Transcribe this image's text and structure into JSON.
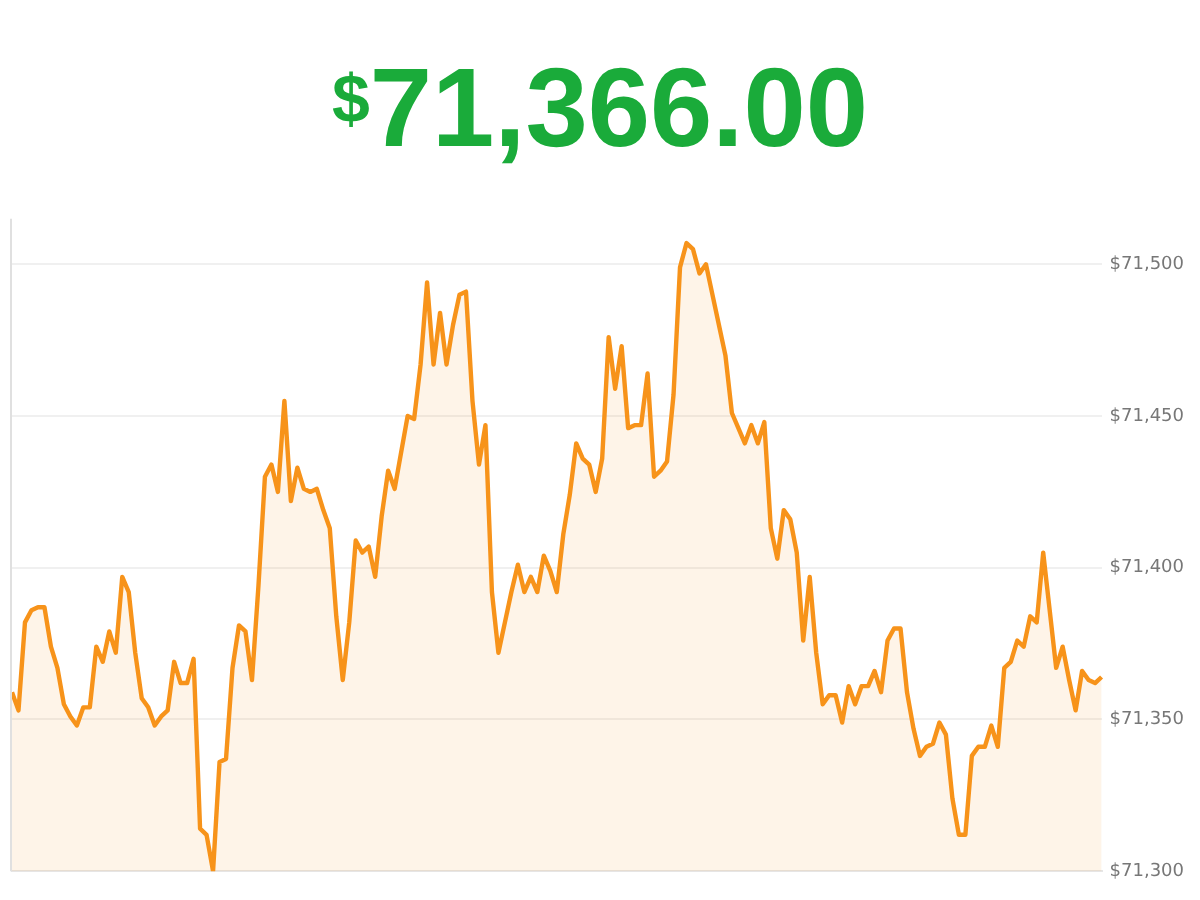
{
  "chart_data": {
    "type": "area",
    "title": "$71,366.00",
    "categories": [
      null,
      null,
      null,
      null,
      null,
      null,
      null,
      null,
      null,
      null,
      null,
      null,
      null,
      null,
      null,
      null,
      null,
      null,
      null,
      null,
      null,
      null,
      null,
      null,
      null,
      null,
      null,
      null,
      null,
      null,
      null,
      null,
      null,
      null,
      null,
      null,
      null,
      null,
      null,
      null,
      null,
      null,
      null,
      null,
      null,
      null,
      null,
      null,
      null,
      null,
      null,
      null,
      null,
      null,
      null,
      null,
      null,
      null,
      null,
      null,
      null,
      null,
      null,
      null,
      null,
      null,
      null,
      null,
      null,
      null,
      null,
      null,
      null,
      null,
      null,
      null,
      null,
      null,
      null,
      null,
      null,
      null,
      null,
      null,
      null,
      null,
      null,
      null,
      null,
      null,
      null,
      null,
      null,
      null,
      null,
      null,
      null,
      null,
      null,
      null,
      null,
      null,
      null,
      null,
      null,
      null,
      null,
      null,
      null,
      null,
      null,
      null,
      null,
      null,
      null,
      null,
      null,
      null,
      null,
      null,
      null,
      null,
      null,
      null,
      null,
      null,
      null,
      null,
      null,
      null,
      null,
      null,
      null,
      null,
      null,
      null,
      null,
      null,
      null,
      null,
      null,
      null,
      null,
      null,
      null,
      null,
      null,
      null,
      null,
      null,
      null,
      null,
      null,
      null,
      null,
      null,
      null,
      null,
      null,
      null,
      null,
      null,
      null,
      null,
      null,
      null,
      null,
      null,
      null
    ],
    "series": [
      {
        "color": "#f7931a",
        "values": [
          71359,
          71353,
          71382,
          71386,
          71387,
          71387,
          71374,
          71367,
          71355,
          71351,
          71348,
          71354,
          71354,
          71374,
          71369,
          71379,
          71372,
          71397,
          71392,
          71372,
          71357,
          71354,
          71348,
          71351,
          71353,
          71369,
          71362,
          71362,
          71370,
          71314,
          71312,
          71300,
          71336,
          71337,
          71367,
          71381,
          71379,
          71363,
          71394,
          71430,
          71434,
          71425,
          71455,
          71422,
          71433,
          71426,
          71425,
          71426,
          71419,
          71413,
          71384,
          71363,
          71382,
          71409,
          71405,
          71407,
          71397,
          71417,
          71432,
          71426,
          71438,
          71450,
          71449,
          71467,
          71494,
          71467,
          71484,
          71467,
          71480,
          71490,
          71491,
          71455,
          71434,
          71447,
          71392,
          71372,
          71382,
          71392,
          71401,
          71392,
          71397,
          71392,
          71404,
          71399,
          71392,
          71411,
          71424,
          71441,
          71436,
          71434,
          71425,
          71436,
          71476,
          71459,
          71473,
          71446,
          71447,
          71447,
          71464,
          71430,
          71432,
          71435,
          71457,
          71499,
          71507,
          71505,
          71497,
          71500,
          71490,
          71480,
          71470,
          71451,
          71446,
          71441,
          71447,
          71441,
          71448,
          71413,
          71403,
          71419,
          71416,
          71405,
          71376,
          71397,
          71372,
          71355,
          71358,
          71358,
          71349,
          71361,
          71355,
          71361,
          71361,
          71366,
          71359,
          71376,
          71380,
          71380,
          71359,
          71347,
          71338,
          71341,
          71342,
          71349,
          71345,
          71324,
          71312,
          71312,
          71338,
          71341,
          71341,
          71348,
          71341,
          71367,
          71369,
          71376,
          71374,
          71384,
          71382,
          71405,
          71386,
          71367,
          71374,
          71363,
          71353,
          71366,
          71363,
          71362,
          71364
        ]
      }
    ],
    "ylim": [
      71300,
      71515
    ],
    "yticks": [
      {
        "value": 71300,
        "label": "$71,300"
      },
      {
        "value": 71350,
        "label": "$71,350"
      },
      {
        "value": 71400,
        "label": "$71,400"
      },
      {
        "value": 71450,
        "label": "$71,450"
      },
      {
        "value": 71500,
        "label": "$71,500"
      }
    ],
    "grid": "y",
    "legend": false,
    "marker": "none"
  }
}
